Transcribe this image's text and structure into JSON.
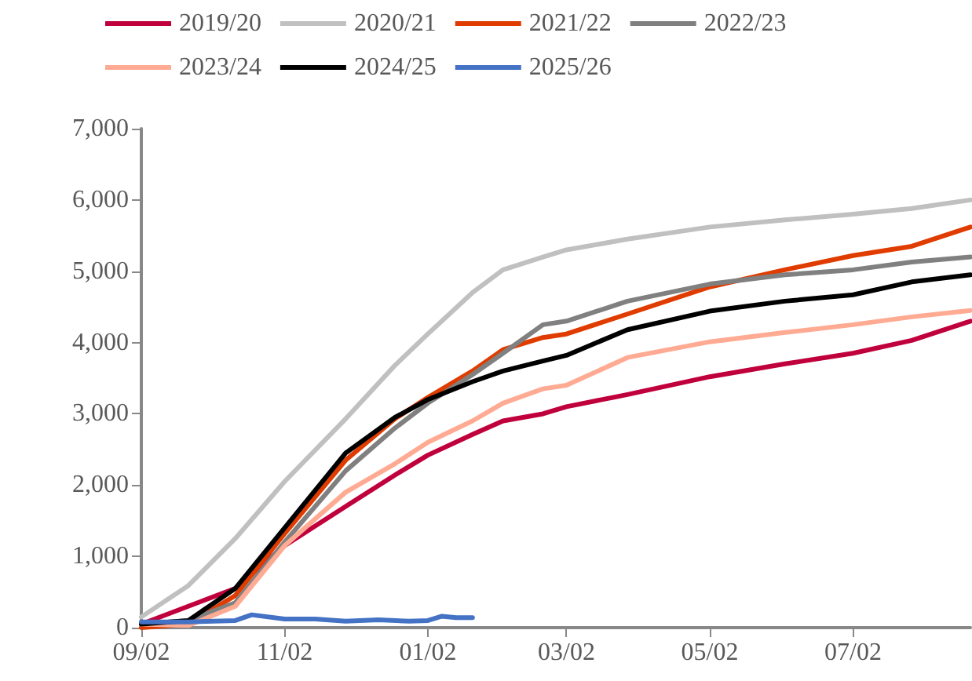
{
  "chart_data": {
    "type": "line",
    "x": [
      "2024-09-02",
      "2024-09-22",
      "2024-10-12",
      "2024-11-02",
      "2024-11-28",
      "2024-12-19",
      "2025-01-02",
      "2025-01-21",
      "2025-02-03",
      "2025-02-20",
      "2025-03-02",
      "2025-03-28",
      "2025-05-02",
      "2025-06-03",
      "2025-07-02",
      "2025-07-27",
      "2025-08-21"
    ],
    "series": [
      {
        "name": "2019/20",
        "color": "#c0003c",
        "values": [
          50,
          300,
          550,
          1150,
          1700,
          2140,
          2420,
          2710,
          2900,
          3000,
          3100,
          3270,
          3520,
          3700,
          3850,
          4030,
          4300
        ]
      },
      {
        "name": "2020/21",
        "color": "#c0c0c0",
        "values": [
          150,
          590,
          1250,
          2050,
          2930,
          3680,
          4120,
          4700,
          5020,
          5200,
          5300,
          5450,
          5620,
          5720,
          5800,
          5880,
          6000
        ]
      },
      {
        "name": "2021/22",
        "color": "#e03c00",
        "values": [
          0,
          50,
          450,
          1320,
          2350,
          2930,
          3230,
          3600,
          3900,
          4070,
          4120,
          4400,
          4780,
          5020,
          5220,
          5350,
          5620
        ]
      },
      {
        "name": "2022/23",
        "color": "#808080",
        "values": [
          50,
          100,
          350,
          1200,
          2200,
          2800,
          3150,
          3550,
          3850,
          4250,
          4300,
          4580,
          4820,
          4950,
          5020,
          5130,
          5200
        ]
      },
      {
        "name": "2023/24",
        "color": "#ffab93",
        "values": [
          50,
          30,
          300,
          1150,
          1900,
          2300,
          2600,
          2900,
          3150,
          3350,
          3400,
          3790,
          4010,
          4140,
          4250,
          4360,
          4450
        ]
      },
      {
        "name": "2024/25",
        "color": "#000000",
        "values": [
          50,
          100,
          550,
          1400,
          2450,
          2950,
          3200,
          3450,
          3600,
          3740,
          3820,
          4180,
          4440,
          4580,
          4670,
          4850,
          4950
        ]
      },
      {
        "name": "2025/26",
        "color": "#4472c4",
        "x": [
          "2024-09-02",
          "2024-09-22",
          "2024-10-12",
          "2024-10-19",
          "2024-11-02",
          "2024-11-15",
          "2024-11-28",
          "2024-12-12",
          "2024-12-25",
          "2025-01-02",
          "2025-01-08",
          "2025-01-14",
          "2025-01-21"
        ],
        "values": [
          80,
          80,
          100,
          180,
          120,
          120,
          90,
          110,
          90,
          100,
          160,
          140,
          140
        ]
      }
    ],
    "xlim": [
      "2024-09-02",
      "2025-08-21"
    ],
    "xticks": [
      {
        "value": "2024-09-02",
        "label": "09/02"
      },
      {
        "value": "2024-11-02",
        "label": "11/02"
      },
      {
        "value": "2025-01-02",
        "label": "01/02"
      },
      {
        "value": "2025-03-02",
        "label": "03/02"
      },
      {
        "value": "2025-05-02",
        "label": "05/02"
      },
      {
        "value": "2025-07-02",
        "label": "07/02"
      }
    ],
    "ylim": [
      0,
      7000
    ],
    "yticks": [
      {
        "value": 0,
        "label": "0"
      },
      {
        "value": 1000,
        "label": "1,000"
      },
      {
        "value": 2000,
        "label": "2,000"
      },
      {
        "value": 3000,
        "label": "3,000"
      },
      {
        "value": 4000,
        "label": "4,000"
      },
      {
        "value": 5000,
        "label": "5,000"
      },
      {
        "value": 6000,
        "label": "6,000"
      },
      {
        "value": 7000,
        "label": "7,000"
      }
    ],
    "grid": false,
    "legend": "top",
    "marker": "none",
    "line_style": "solid"
  }
}
